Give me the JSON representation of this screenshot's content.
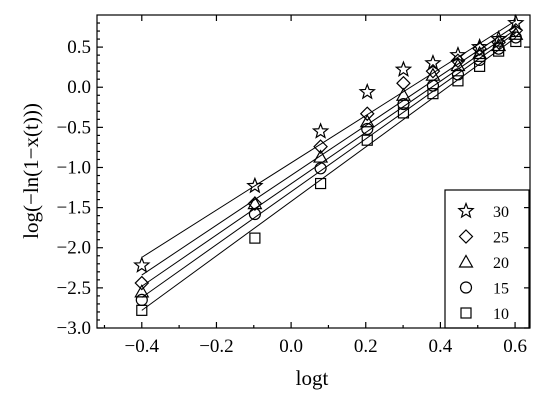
{
  "chart_data": {
    "type": "scatter",
    "xlabel": "logt",
    "ylabel": "log(−ln(1−x(t)))",
    "xlim": [
      -0.52,
      0.64
    ],
    "ylim": [
      -3.0,
      0.9
    ],
    "x_ticks": [
      -0.4,
      -0.2,
      0.0,
      0.2,
      0.4,
      0.6
    ],
    "x_tick_labels": [
      "−0.4",
      "−0.2",
      "0.0",
      "0.2",
      "0.4",
      "0.6"
    ],
    "y_ticks": [
      -3.0,
      -2.5,
      -2.0,
      -1.5,
      -1.0,
      -0.5,
      0.0,
      0.5
    ],
    "y_tick_labels": [
      "−3.0",
      "−2.5",
      "−2.0",
      "−1.5",
      "−1.0",
      "−0.5",
      "0.0",
      "0.5"
    ],
    "legend_position": "bottom-right",
    "grid": false,
    "series": [
      {
        "name": "30",
        "marker": "star",
        "x": [
          -0.4,
          -0.097,
          0.079,
          0.204,
          0.301,
          0.38,
          0.447,
          0.505,
          0.556,
          0.602
        ],
        "y": [
          -2.22,
          -1.23,
          -0.55,
          -0.06,
          0.22,
          0.3,
          0.4,
          0.5,
          0.6,
          0.8
        ],
        "fit": {
          "x": [
            -0.4,
            0.602
          ],
          "y": [
            -2.12,
            0.83
          ]
        }
      },
      {
        "name": "25",
        "marker": "diamond",
        "x": [
          -0.4,
          -0.097,
          0.079,
          0.204,
          0.301,
          0.38,
          0.447,
          0.505,
          0.556,
          0.602
        ],
        "y": [
          -2.44,
          -1.45,
          -0.74,
          -0.33,
          0.05,
          0.2,
          0.33,
          0.48,
          0.56,
          0.71
        ],
        "fit": {
          "x": [
            -0.4,
            0.602
          ],
          "y": [
            -2.34,
            0.77
          ]
        }
      },
      {
        "name": "20",
        "marker": "triangle",
        "x": [
          -0.4,
          -0.097,
          0.079,
          0.204,
          0.301,
          0.38,
          0.447,
          0.505,
          0.556,
          0.602
        ],
        "y": [
          -2.55,
          -1.45,
          -0.87,
          -0.43,
          -0.1,
          0.15,
          0.27,
          0.42,
          0.52,
          0.66
        ],
        "fit": {
          "x": [
            -0.4,
            0.602
          ],
          "y": [
            -2.48,
            0.72
          ]
        }
      },
      {
        "name": "15",
        "marker": "circle",
        "x": [
          -0.4,
          -0.097,
          0.079,
          0.204,
          0.301,
          0.38,
          0.447,
          0.505,
          0.556,
          0.602
        ],
        "y": [
          -2.65,
          -1.58,
          -1.01,
          -0.52,
          -0.21,
          0.02,
          0.16,
          0.34,
          0.48,
          0.62
        ],
        "fit": {
          "x": [
            -0.4,
            0.602
          ],
          "y": [
            -2.62,
            0.68
          ]
        }
      },
      {
        "name": "10",
        "marker": "square",
        "x": [
          -0.4,
          -0.097,
          0.079,
          0.204,
          0.301,
          0.38,
          0.447,
          0.505,
          0.556,
          0.602
        ],
        "y": [
          -2.78,
          -1.88,
          -1.2,
          -0.66,
          -0.32,
          -0.08,
          0.08,
          0.26,
          0.45,
          0.57
        ],
        "fit": {
          "x": [
            -0.4,
            0.602
          ],
          "y": [
            -2.78,
            0.62
          ]
        }
      }
    ]
  }
}
